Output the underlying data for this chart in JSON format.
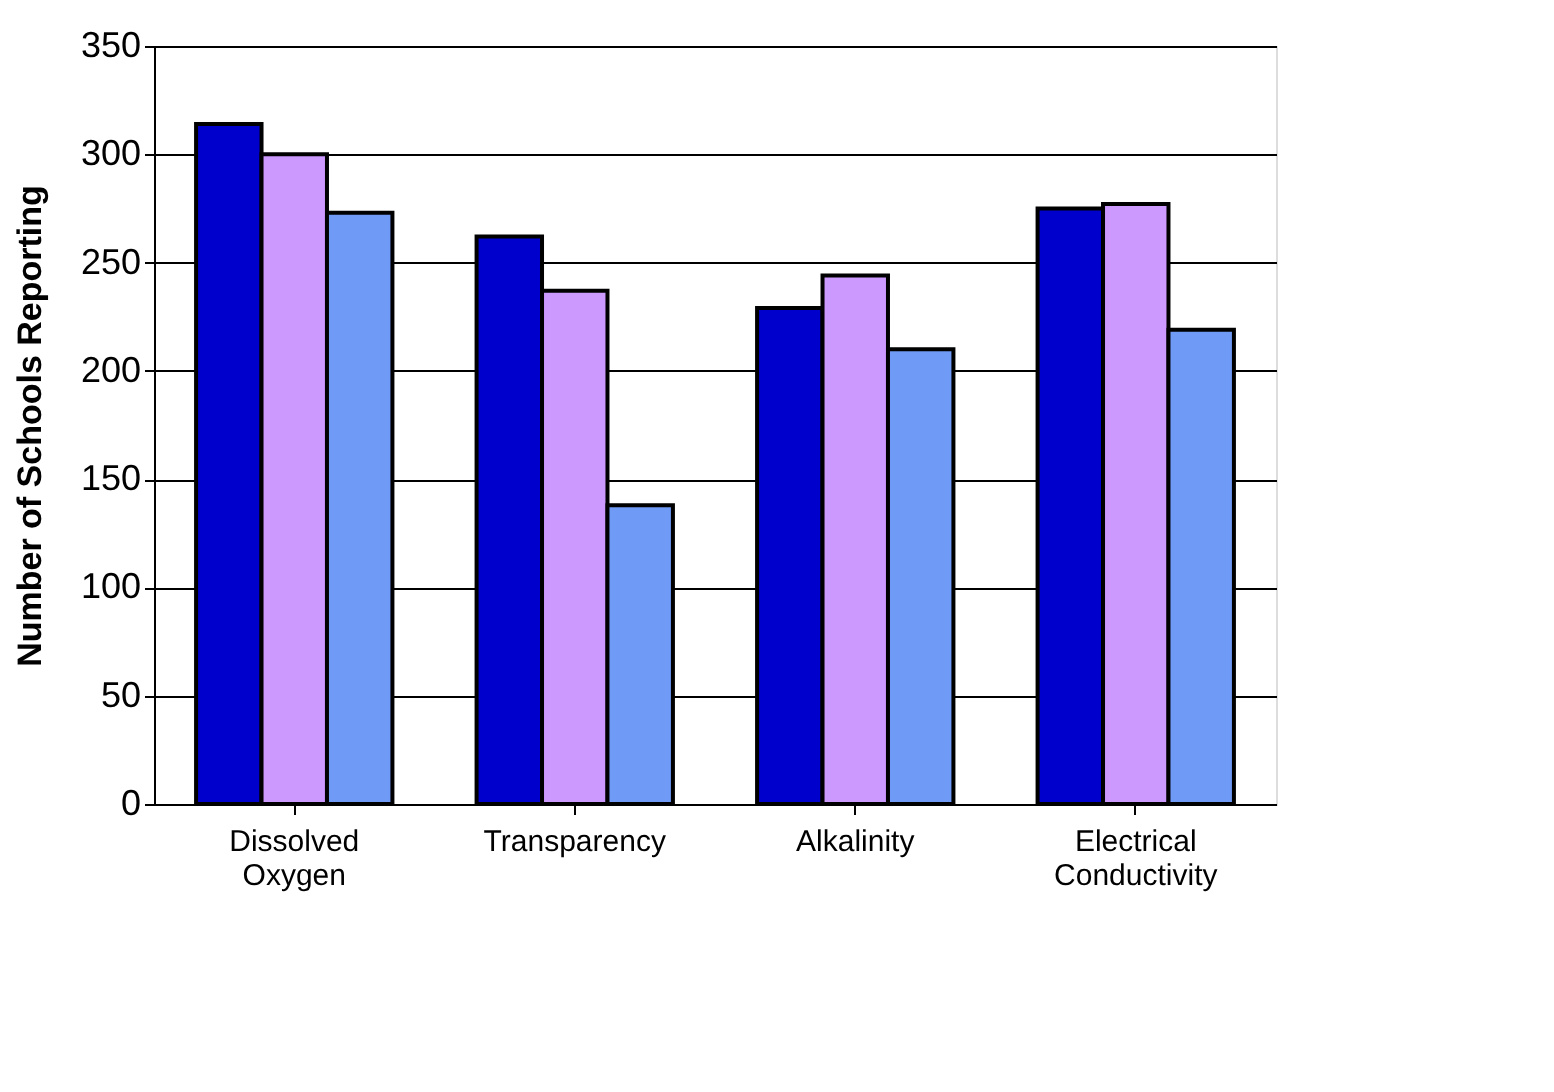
{
  "chart_data": {
    "type": "bar",
    "ylabel": "Number of Schools Reporting",
    "categories": [
      "Dissolved Oxygen",
      "Transparency",
      "Alkalinity",
      "Electrical Conductivity"
    ],
    "series": [
      {
        "color": "#0000cc",
        "values": [
          314,
          262,
          229,
          275
        ]
      },
      {
        "color": "#cc99ff",
        "values": [
          300,
          237,
          244,
          277
        ]
      },
      {
        "color": "#6f9af5",
        "values": [
          273,
          138,
          210,
          219
        ]
      }
    ],
    "ylim": [
      0,
      350
    ],
    "yticks": [
      0,
      50,
      100,
      150,
      200,
      250,
      300,
      350
    ],
    "grid": "y",
    "legend": false
  }
}
